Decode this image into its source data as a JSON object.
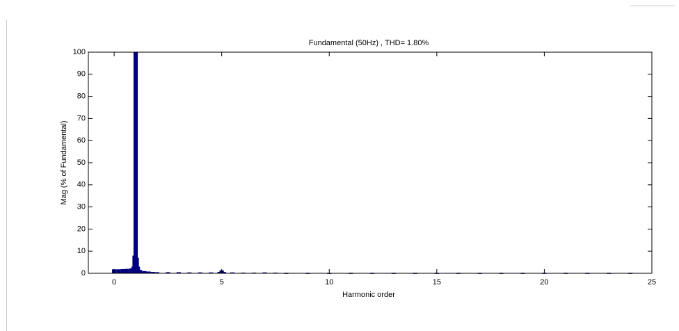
{
  "chart_data": {
    "type": "bar",
    "title": "Fundamental (50Hz) , THD= 1.80%",
    "xlabel": "Harmonic order",
    "ylabel": "Mag (% of Fundamental)",
    "x": [
      0,
      0.2,
      0.4,
      0.6,
      0.8,
      0.9,
      0.95,
      1,
      1.05,
      1.1,
      1.2,
      1.4,
      1.6,
      1.8,
      2,
      2.5,
      3,
      3.5,
      4,
      4.5,
      4.9,
      5,
      5.1,
      5.5,
      6,
      6.5,
      7,
      7.5,
      8,
      9,
      10,
      11,
      12,
      13,
      14,
      15,
      16,
      17,
      18,
      19,
      20,
      21,
      22,
      23,
      24
    ],
    "values": [
      1.8,
      1.8,
      1.9,
      2,
      2.2,
      3,
      8,
      100,
      7,
      3,
      1.5,
      1.0,
      0.8,
      0.6,
      0.5,
      0.5,
      0.5,
      0.4,
      0.4,
      0.4,
      0.6,
      1.3,
      0.6,
      0.4,
      0.3,
      0.3,
      0.4,
      0.3,
      0.2,
      0.2,
      0.2,
      0.2,
      0.2,
      0.2,
      0.2,
      0.2,
      0.2,
      0.2,
      0.2,
      0.2,
      0.2,
      0.2,
      0.2,
      0.2,
      0.2
    ],
    "color": "#00007f",
    "xlim": [
      -1.2,
      25
    ],
    "xticks": [
      0,
      5,
      10,
      15,
      20,
      25
    ],
    "ylim": [
      0,
      100
    ],
    "yticks": [
      0,
      10,
      20,
      30,
      40,
      50,
      60,
      70,
      80,
      90,
      100
    ],
    "grid": false
  }
}
